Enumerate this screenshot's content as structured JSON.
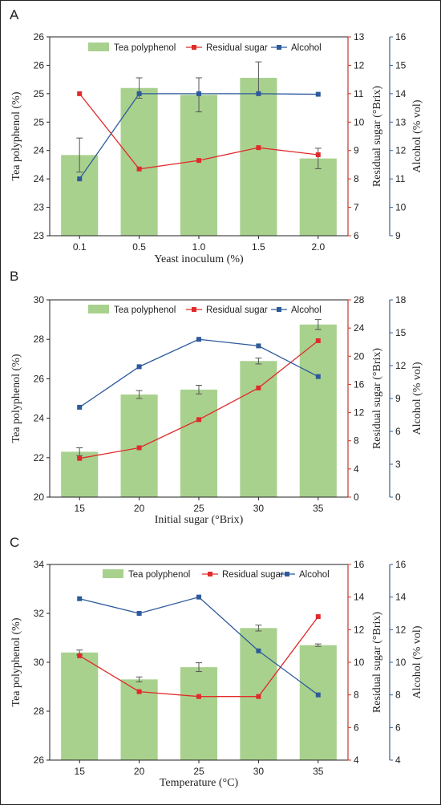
{
  "colors": {
    "bar": "#a9d18e",
    "residual": "#e02b2b",
    "alcohol": "#2d5a9b",
    "residual_axis": "#c0392b",
    "alcohol_axis": "#3a5f8f"
  },
  "legend": {
    "bar": "Tea polyphenol",
    "residual": "Residual sugar",
    "alcohol": "Alcohol"
  },
  "chart_data": [
    {
      "panel": "A",
      "type": "bar",
      "xlabel": "Yeast inoculum (%)",
      "categories": [
        "0.1",
        "0.5",
        "1.0",
        "1.5",
        "2.0"
      ],
      "ylabel": "Tea polyphenol (%)",
      "ylim": [
        22.5,
        26
      ],
      "yticks": [
        22.5,
        23,
        23.5,
        24,
        24.5,
        25,
        25.5,
        26
      ],
      "yticklabels": [
        "23",
        "23",
        "24",
        "24",
        "25",
        "25",
        "26",
        "26"
      ],
      "ylabel2": "Residual sugar (°Brix)",
      "y2lim": [
        6,
        13
      ],
      "y2ticks": [
        6,
        7,
        8,
        9,
        10,
        11,
        12,
        13
      ],
      "ylabel3": "Alcohol (% vol)",
      "y3lim": [
        9,
        16
      ],
      "y3ticks": [
        9,
        10,
        11,
        12,
        13,
        14,
        15,
        16
      ],
      "series": [
        {
          "name": "Tea polyphenol",
          "kind": "bar",
          "axis": "y",
          "values": [
            23.92,
            25.1,
            24.98,
            25.28,
            23.86
          ],
          "errors": [
            0.3,
            0.18,
            0.3,
            0.28,
            0.18
          ]
        },
        {
          "name": "Residual sugar",
          "kind": "line",
          "axis": "y2",
          "values": [
            11.0,
            8.35,
            8.65,
            9.1,
            8.85
          ]
        },
        {
          "name": "Alcohol",
          "kind": "line",
          "axis": "y3",
          "values": [
            11.0,
            14.0,
            14.0,
            14.0,
            13.98
          ]
        }
      ]
    },
    {
      "panel": "B",
      "type": "bar",
      "xlabel": "Initial sugar (°Brix)",
      "categories": [
        "15",
        "20",
        "25",
        "30",
        "35"
      ],
      "ylabel": "Tea polyphenol (%)",
      "ylim": [
        20,
        30
      ],
      "yticks": [
        20,
        22,
        24,
        26,
        28,
        30
      ],
      "yticklabels": [
        "20",
        "22",
        "24",
        "26",
        "28",
        "30"
      ],
      "ylabel2": "Residual sugar (°Brix)",
      "y2lim": [
        0,
        28
      ],
      "y2ticks": [
        0,
        4,
        8,
        12,
        16,
        20,
        24,
        28
      ],
      "ylabel3": "Alcohol (% vol)",
      "y3lim": [
        0,
        18
      ],
      "y3ticks": [
        0,
        3,
        6,
        9,
        12,
        15,
        18
      ],
      "series": [
        {
          "name": "Tea polyphenol",
          "kind": "bar",
          "axis": "y",
          "values": [
            22.3,
            25.2,
            25.45,
            26.9,
            28.75
          ],
          "errors": [
            0.2,
            0.2,
            0.22,
            0.15,
            0.25
          ]
        },
        {
          "name": "Residual sugar",
          "kind": "line",
          "axis": "y2",
          "values": [
            5.5,
            7.0,
            11.0,
            15.5,
            22.2
          ]
        },
        {
          "name": "Alcohol",
          "kind": "line",
          "axis": "y3",
          "values": [
            8.2,
            11.9,
            14.4,
            13.8,
            11.0
          ]
        }
      ]
    },
    {
      "panel": "C",
      "type": "bar",
      "xlabel": "Temperature (°C)",
      "categories": [
        "15",
        "20",
        "25",
        "30",
        "35"
      ],
      "ylabel": "Tea polyphenol (%)",
      "ylim": [
        26,
        34
      ],
      "yticks": [
        26,
        28,
        30,
        32,
        34
      ],
      "yticklabels": [
        "26",
        "28",
        "30",
        "32",
        "34"
      ],
      "ylabel2": "Residual sugar (°Brix)",
      "y2lim": [
        4,
        16
      ],
      "y2ticks": [
        4,
        6,
        8,
        10,
        12,
        14,
        16
      ],
      "ylabel3": "Alcohol (% vol)",
      "y3lim": [
        4,
        16
      ],
      "y3ticks": [
        4,
        6,
        8,
        10,
        12,
        14,
        16
      ],
      "series": [
        {
          "name": "Tea polyphenol",
          "kind": "bar",
          "axis": "y",
          "values": [
            30.4,
            29.3,
            29.8,
            31.4,
            30.7
          ],
          "errors": [
            0.1,
            0.1,
            0.18,
            0.12,
            0.05
          ]
        },
        {
          "name": "Residual sugar",
          "kind": "line",
          "axis": "y2",
          "values": [
            10.4,
            8.2,
            7.9,
            7.9,
            12.8
          ]
        },
        {
          "name": "Alcohol",
          "kind": "line",
          "axis": "y3",
          "values": [
            13.9,
            13.0,
            14.0,
            10.7,
            8.0
          ]
        }
      ]
    }
  ]
}
